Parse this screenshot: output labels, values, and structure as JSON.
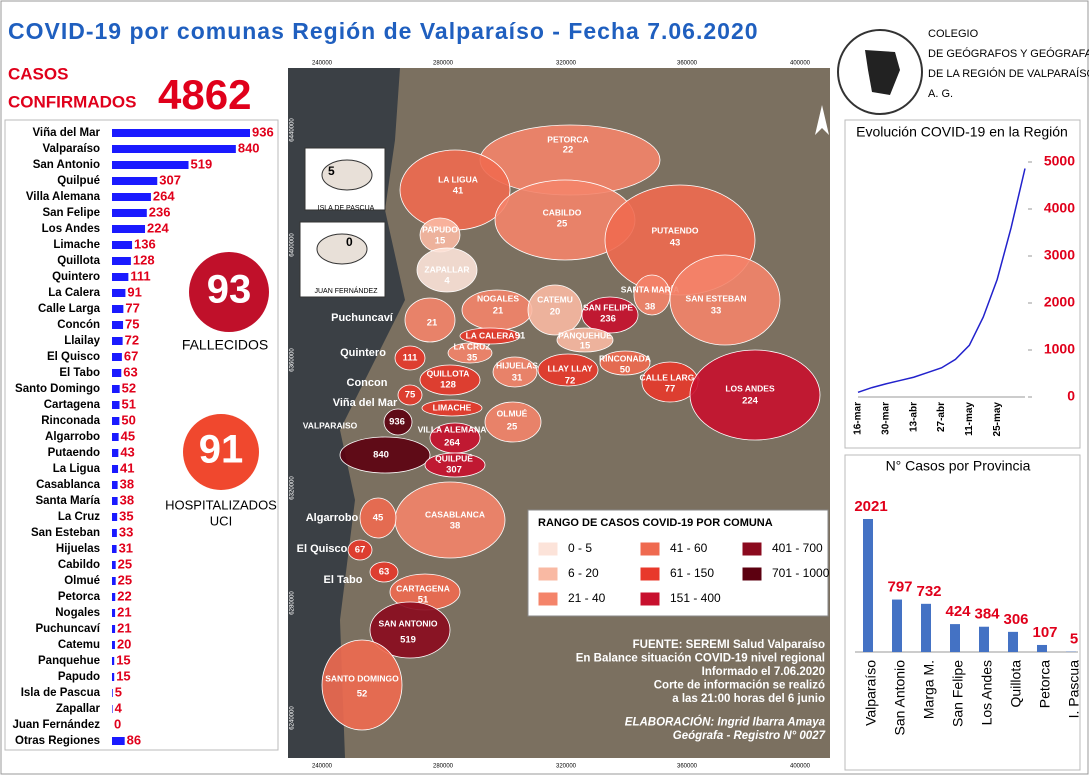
{
  "title": "COVID-19 por comunas Región de Valparaíso - Fecha 7.06.2020",
  "org": [
    "COLEGIO",
    "DE GEÓGRAFOS Y GEÓGRAFAS",
    "DE LA REGIÓN DE VALPARAÍSO",
    "A. G."
  ],
  "confirmed": {
    "label": [
      "CASOS",
      "CONFIRMADOS"
    ],
    "value": 4862
  },
  "deaths": {
    "value": 93,
    "label": "FALLECIDOS"
  },
  "hospitalized": {
    "value": 91,
    "label": [
      "HOSPITALIZADOS",
      "UCI"
    ]
  },
  "chart_data": [
    {
      "type": "bar",
      "orientation": "horizontal",
      "color": "#1a1aff",
      "label_color": "#e0001b",
      "categories": [
        "Viña del Mar",
        "Valparaíso",
        "San Antonio",
        "Quilpué",
        "Villa Alemana",
        "San Felipe",
        "Los Andes",
        "Limache",
        "Quillota",
        "Quintero",
        "La Calera",
        "Calle Larga",
        "Concón",
        "Llailay",
        "El Quisco",
        "El Tabo",
        "Santo Domingo",
        "Cartagena",
        "Rinconada",
        "Algarrobo",
        "Putaendo",
        "La Ligua",
        "Casablanca",
        "Santa María",
        "La Cruz",
        "San Esteban",
        "Hijuelas",
        "Cabildo",
        "Olmué",
        "Petorca",
        "Nogales",
        "Puchuncaví",
        "Catemu",
        "Panquehue",
        "Papudo",
        "Isla de Pascua",
        "Zapallar",
        "Juan Fernández",
        "Otras Regiones"
      ],
      "values": [
        936,
        840,
        519,
        307,
        264,
        236,
        224,
        136,
        128,
        111,
        91,
        77,
        75,
        72,
        67,
        63,
        52,
        51,
        50,
        45,
        43,
        41,
        38,
        38,
        35,
        33,
        31,
        25,
        25,
        22,
        21,
        21,
        20,
        15,
        15,
        5,
        4,
        0,
        86
      ]
    },
    {
      "type": "line",
      "title": "Evolución COVID-19 en la Región",
      "color": "#2222cc",
      "tick_color": "#e0001b",
      "categories": [
        "16-mar",
        null,
        "30-mar",
        null,
        "13-abr",
        null,
        "27-abr",
        null,
        "11-may",
        null,
        "25-may",
        null,
        null
      ],
      "values": [
        100,
        200,
        280,
        350,
        420,
        520,
        620,
        800,
        1100,
        1700,
        2500,
        3600,
        4862
      ],
      "ylim": [
        0,
        5000
      ],
      "yticks": [
        0,
        1000,
        2000,
        3000,
        4000,
        5000
      ]
    },
    {
      "type": "bar",
      "title": "N° Casos por Provincia",
      "color": "#4472c4",
      "label_color": "#e0001b",
      "categories": [
        "Valparaíso",
        "San Antonio",
        "Marga M.",
        "San Felipe",
        "Los Andes",
        "Quillota",
        "Petorca",
        "I. Pascua"
      ],
      "values": [
        2021,
        797,
        732,
        424,
        384,
        306,
        107,
        5
      ]
    }
  ],
  "map": {
    "xticks": [
      240000,
      280000,
      320000,
      360000,
      400000
    ],
    "yticks": [
      6440000,
      6400000,
      6360000,
      6320000,
      6280000,
      6240000
    ],
    "regions": [
      {
        "name": "PETORCA",
        "value": 22,
        "color": "#f4846a"
      },
      {
        "name": "LA LIGUA",
        "value": 41,
        "color": "#ef6a50"
      },
      {
        "name": "CABILDO",
        "value": 25,
        "color": "#f4846a"
      },
      {
        "name": "PAPUDO",
        "value": 15,
        "color": "#f9b9a3"
      },
      {
        "name": "ZAPALLAR",
        "value": 4,
        "color": "#fce3d9"
      },
      {
        "name": "PUTAENDO",
        "value": 43,
        "color": "#ef6a50"
      },
      {
        "name": "NOGALES",
        "value": 21,
        "color": "#f4846a"
      },
      {
        "name": "CATEMU",
        "value": 20,
        "color": "#f9b9a3"
      },
      {
        "name": "SAN FELIPE",
        "value": 236,
        "color": "#c8102e"
      },
      {
        "name": "SANTA MARÍA",
        "value": 38,
        "color": "#f4846a"
      },
      {
        "name": "SAN ESTEBAN",
        "value": 33,
        "color": "#f4846a"
      },
      {
        "name": "Puchuncaví",
        "value": 21,
        "color": "#f4846a"
      },
      {
        "name": "LA CALERA",
        "value": 91,
        "color": "#e8392b"
      },
      {
        "name": "LA CRUZ",
        "value": 35,
        "color": "#f4846a"
      },
      {
        "name": "HIJUELAS",
        "value": 31,
        "color": "#f4846a"
      },
      {
        "name": "PANQUEHUE",
        "value": 15,
        "color": "#f9b9a3"
      },
      {
        "name": "LLAY LLAY",
        "value": 72,
        "color": "#e8392b"
      },
      {
        "name": "RINCONADA",
        "value": 50,
        "color": "#ef6a50"
      },
      {
        "name": "CALLE LARGA",
        "value": 77,
        "color": "#e8392b"
      },
      {
        "name": "LOS ANDES",
        "value": 224,
        "color": "#c8102e"
      },
      {
        "name": "Quintero",
        "value": 111,
        "color": "#e8392b"
      },
      {
        "name": "QUILLOTA",
        "value": 128,
        "color": "#e8392b"
      },
      {
        "name": "Concon",
        "value": 75,
        "color": "#e8392b"
      },
      {
        "name": "Viña del Mar",
        "value": 936,
        "color": "#5c0010"
      },
      {
        "name": "LIMACHE",
        "value": 136,
        "color": "#e8392b"
      },
      {
        "name": "VALPARAISO",
        "value": 840,
        "color": "#5c0010"
      },
      {
        "name": "VILLA ALEMANA",
        "value": 264,
        "color": "#c8102e"
      },
      {
        "name": "OLMUÉ",
        "value": 25,
        "color": "#f4846a"
      },
      {
        "name": "QUILPUÉ",
        "value": 307,
        "color": "#c8102e"
      },
      {
        "name": "CASABLANCA",
        "value": 38,
        "color": "#f4846a"
      },
      {
        "name": "Algarrobo",
        "value": 45,
        "color": "#ef6a50"
      },
      {
        "name": "El Quisco",
        "value": 67,
        "color": "#e8392b"
      },
      {
        "name": "El Tabo",
        "value": 63,
        "color": "#e8392b"
      },
      {
        "name": "CARTAGENA",
        "value": 51,
        "color": "#ef6a50"
      },
      {
        "name": "SAN ANTONIO",
        "value": 519,
        "color": "#8b0a1e"
      },
      {
        "name": "SANTO DOMINGO",
        "value": 52,
        "color": "#ef6a50"
      }
    ],
    "insets": [
      {
        "name": "ISLA DE PASCUA",
        "value": 5
      },
      {
        "name": "JUAN FERNÁNDEZ",
        "value": 0
      }
    ]
  },
  "legend": {
    "title": "RANGO DE CASOS COVID-19 POR COMUNA",
    "items": [
      {
        "label": "0 - 5",
        "color": "#fce3d9"
      },
      {
        "label": "6 - 20",
        "color": "#f9b9a3"
      },
      {
        "label": "21 - 40",
        "color": "#f4846a"
      },
      {
        "label": "41 - 60",
        "color": "#ef6a50"
      },
      {
        "label": "61 - 150",
        "color": "#e8392b"
      },
      {
        "label": "151 - 400",
        "color": "#c8102e"
      },
      {
        "label": "401 - 700",
        "color": "#8b0a1e"
      },
      {
        "label": "701 - 1000",
        "color": "#5c0010"
      }
    ]
  },
  "source": [
    "FUENTE: SEREMI Salud Valparaíso",
    "En Balance situación COVID-19 nivel regional",
    "Informado el 7.06.2020",
    "Corte de información se realizó",
    "a las 21:00 horas del 6 junio",
    "ELABORACIÓN: Ingrid Ibarra Amaya",
    "Geógrafa - Registro N° 0027"
  ]
}
